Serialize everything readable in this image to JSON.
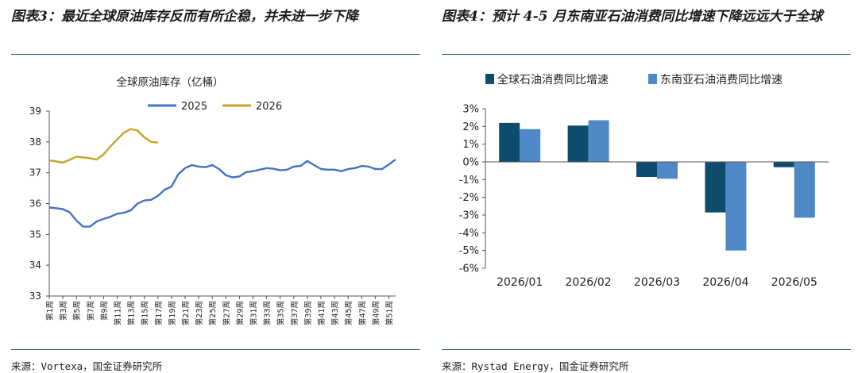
{
  "left": {
    "figure_title": "图表3：最近全球原油库存反而有所企稳，并未进一步下降",
    "source": "来源：Vortexa，国金证券研究所"
  },
  "right": {
    "figure_title": "图表4：预计 4-5 月东南亚石油消费同比增速下降远远大于全球",
    "source": "来源：Rystad Energy，国金证券研究所"
  },
  "chart_data": [
    {
      "type": "line",
      "title": "全球原油库存（亿桶）",
      "ylim": [
        33,
        39
      ],
      "yticks": [
        33,
        34,
        35,
        36,
        37,
        38,
        39
      ],
      "week_ticks": [
        "第1周",
        "第3周",
        "第5周",
        "第7周",
        "第9周",
        "第11周",
        "第13周",
        "第15周",
        "第17周",
        "第19周",
        "第21周",
        "第23周",
        "第25周",
        "第27周",
        "第29周",
        "第31周",
        "第33周",
        "第35周",
        "第37周",
        "第39周",
        "第41周",
        "第43周",
        "第45周",
        "第47周",
        "第49周",
        "第51周"
      ],
      "legend_position": "top",
      "series": [
        {
          "name": "2025",
          "color": "#4472c4",
          "weeks": [
            1,
            2,
            3,
            4,
            5,
            6,
            7,
            8,
            9,
            10,
            11,
            12,
            13,
            14,
            15,
            16,
            17,
            18,
            19,
            20,
            21,
            22,
            23,
            24,
            25,
            26,
            27,
            28,
            29,
            30,
            31,
            32,
            33,
            34,
            35,
            36,
            37,
            38,
            39,
            40,
            41,
            42,
            43,
            44,
            45,
            46,
            47,
            48,
            49,
            50,
            51,
            52
          ],
          "values": [
            35.87,
            35.85,
            35.82,
            35.72,
            35.45,
            35.25,
            35.25,
            35.42,
            35.5,
            35.57,
            35.67,
            35.7,
            35.78,
            36.0,
            36.1,
            36.12,
            36.25,
            36.45,
            36.55,
            36.95,
            37.15,
            37.25,
            37.2,
            37.18,
            37.25,
            37.12,
            36.92,
            36.85,
            36.88,
            37.02,
            37.05,
            37.1,
            37.15,
            37.13,
            37.08,
            37.1,
            37.2,
            37.22,
            37.38,
            37.25,
            37.12,
            37.1,
            37.1,
            37.05,
            37.12,
            37.15,
            37.22,
            37.2,
            37.12,
            37.12,
            37.27,
            37.43
          ]
        },
        {
          "name": "2026",
          "color": "#c9a227",
          "weeks": [
            1,
            2,
            3,
            4,
            5,
            6,
            7,
            8,
            9,
            10,
            11,
            12,
            13,
            14,
            15,
            16,
            17
          ],
          "values": [
            37.4,
            37.37,
            37.33,
            37.42,
            37.52,
            37.5,
            37.47,
            37.43,
            37.6,
            37.85,
            38.08,
            38.3,
            38.42,
            38.37,
            38.15,
            38.0,
            37.98
          ]
        }
      ]
    },
    {
      "type": "bar",
      "categories": [
        "2026/01",
        "2026/02",
        "2026/03",
        "2026/04",
        "2026/05"
      ],
      "ylim": [
        -6,
        3
      ],
      "yticks": [
        -6,
        -5,
        -4,
        -3,
        -2,
        -1,
        0,
        1,
        2,
        3
      ],
      "y_unit": "%",
      "legend_position": "top",
      "series": [
        {
          "name": "全球石油消费同比增速",
          "color": "#0e4c6d",
          "values": [
            2.2,
            2.05,
            -0.85,
            -2.85,
            -0.3
          ]
        },
        {
          "name": "东南亚石油消费同比增速",
          "color": "#4f88c7",
          "values": [
            1.85,
            2.35,
            -0.95,
            -5.0,
            -3.15
          ]
        }
      ]
    }
  ]
}
